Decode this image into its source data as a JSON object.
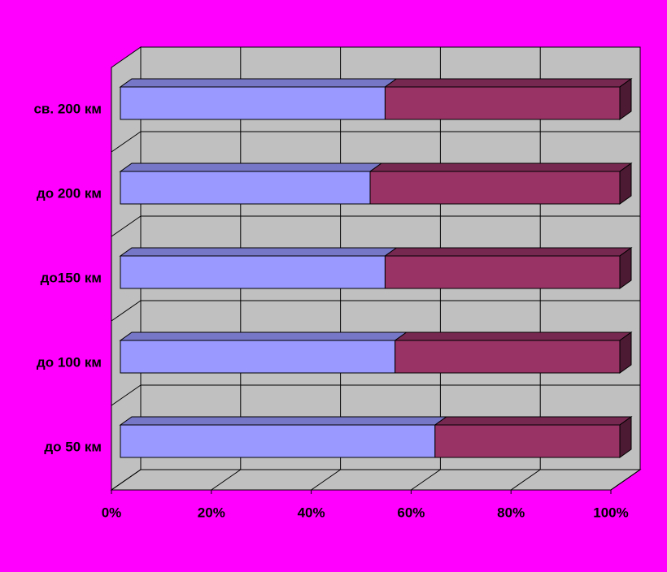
{
  "chart_data": {
    "type": "bar3d_stacked_horizontal",
    "categories": [
      "св. 200 км",
      "до 200 км",
      "до150 км",
      "до 100 км",
      "до 50 км"
    ],
    "series": [
      {
        "color": "#9999ff",
        "values": [
          53,
          50,
          53,
          55,
          63
        ]
      },
      {
        "color": "#993366",
        "values": [
          47,
          50,
          47,
          45,
          37
        ]
      }
    ],
    "xlim": [
      0,
      100
    ],
    "xticks": [
      {
        "value": 0,
        "label": "0%"
      },
      {
        "value": 20,
        "label": "20%"
      },
      {
        "value": 40,
        "label": "40%"
      },
      {
        "value": 60,
        "label": "60%"
      },
      {
        "value": 80,
        "label": "80%"
      },
      {
        "value": 100,
        "label": "100%"
      }
    ],
    "grid": true
  }
}
